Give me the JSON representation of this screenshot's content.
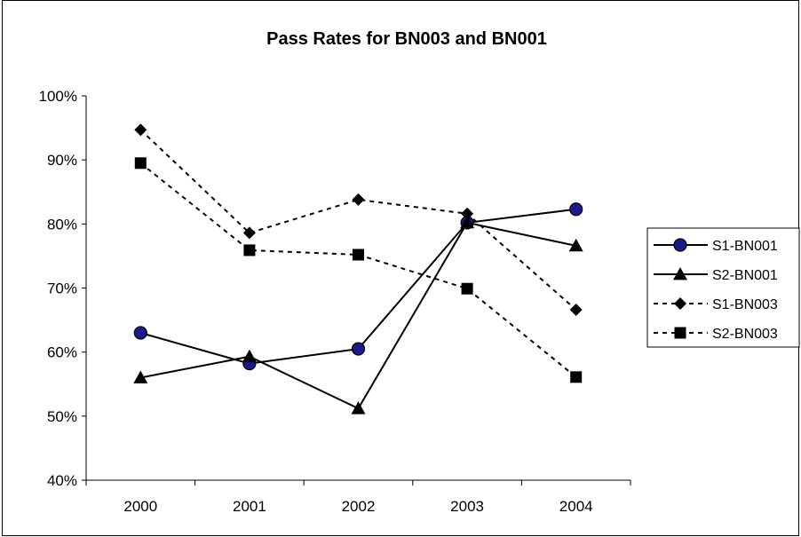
{
  "chart_data": {
    "type": "line",
    "title": "Pass Rates for BN003 and BN001",
    "xlabel": "",
    "ylabel": "",
    "categories": [
      "2000",
      "2001",
      "2002",
      "2003",
      "2004"
    ],
    "ylim": [
      40,
      100
    ],
    "yticks": [
      40,
      50,
      60,
      70,
      80,
      90,
      100
    ],
    "ytick_labels": [
      "40%",
      "50%",
      "60%",
      "70%",
      "80%",
      "90%",
      "100%"
    ],
    "grid": false,
    "legend_position": "right",
    "series": [
      {
        "name": "S1-BN001",
        "values": [
          63,
          58.2,
          60.5,
          80.2,
          82.3
        ],
        "marker": "circle",
        "line": "solid",
        "marker_color": "#1a1a8c"
      },
      {
        "name": "S2-BN001",
        "values": [
          56,
          59.3,
          51.2,
          80.2,
          76.6
        ],
        "marker": "triangle",
        "line": "solid",
        "marker_color": "#000000"
      },
      {
        "name": "S1-BN003",
        "values": [
          94.7,
          78.6,
          83.8,
          81.6,
          66.6
        ],
        "marker": "diamond",
        "line": "dashed",
        "marker_color": "#000000"
      },
      {
        "name": "S2-BN003",
        "values": [
          89.5,
          75.9,
          75.2,
          69.9,
          56.1
        ],
        "marker": "square",
        "line": "dashed",
        "marker_color": "#000000"
      }
    ]
  }
}
